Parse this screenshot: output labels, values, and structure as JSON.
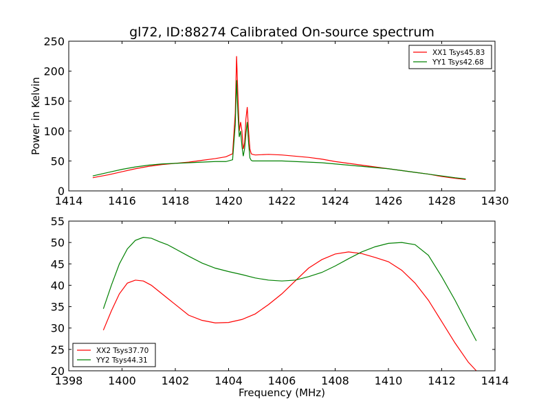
{
  "chart_data": [
    {
      "type": "line",
      "title": "gl72, ID:88274 Calibrated On-source spectrum",
      "xlabel": "",
      "ylabel": "Power in Kelvin",
      "xlim": [
        1414,
        1430
      ],
      "ylim": [
        0,
        250
      ],
      "xticks": [
        "1414",
        "1416",
        "1418",
        "1420",
        "1422",
        "1424",
        "1426",
        "1428",
        "1430"
      ],
      "yticks": [
        "0",
        "50",
        "100",
        "150",
        "200",
        "250"
      ],
      "grid": false,
      "legend_placement": "top-right",
      "series": [
        {
          "name": "XX1 Tsys45.83",
          "color": "#ff0000",
          "x": [
            1414.9,
            1415.5,
            1416.0,
            1416.5,
            1417.0,
            1417.5,
            1418.0,
            1418.5,
            1419.0,
            1419.5,
            1419.9,
            1420.15,
            1420.25,
            1420.3,
            1420.35,
            1420.4,
            1420.45,
            1420.5,
            1420.55,
            1420.6,
            1420.65,
            1420.7,
            1420.75,
            1420.8,
            1420.85,
            1420.9,
            1421.0,
            1421.5,
            1422.0,
            1422.5,
            1423.0,
            1423.5,
            1424.0,
            1424.5,
            1425.0,
            1425.5,
            1426.0,
            1426.5,
            1427.0,
            1427.5,
            1428.0,
            1428.5,
            1428.9
          ],
          "y": [
            22,
            27,
            32,
            37,
            41,
            44,
            46,
            48,
            51,
            54,
            57,
            62,
            130,
            225,
            160,
            100,
            115,
            100,
            70,
            80,
            120,
            140,
            100,
            70,
            62,
            61,
            60,
            61,
            60,
            58,
            56,
            53,
            49,
            46,
            43,
            40,
            37,
            34,
            31,
            28,
            24,
            21,
            19
          ]
        },
        {
          "name": "YY1 Tsys42.68",
          "color": "#008000",
          "x": [
            1414.9,
            1415.5,
            1416.0,
            1416.5,
            1417.0,
            1417.5,
            1418.0,
            1418.5,
            1419.0,
            1419.5,
            1419.9,
            1420.15,
            1420.25,
            1420.3,
            1420.35,
            1420.4,
            1420.45,
            1420.5,
            1420.55,
            1420.6,
            1420.65,
            1420.7,
            1420.75,
            1420.8,
            1420.85,
            1420.9,
            1421.0,
            1421.5,
            1422.0,
            1422.5,
            1423.0,
            1423.5,
            1424.0,
            1424.5,
            1425.0,
            1425.5,
            1426.0,
            1426.5,
            1427.0,
            1427.5,
            1428.0,
            1428.5,
            1428.9
          ],
          "y": [
            25,
            31,
            36,
            40,
            43,
            45,
            46,
            47,
            48,
            49,
            49,
            52,
            110,
            185,
            130,
            90,
            100,
            75,
            58,
            70,
            95,
            115,
            80,
            55,
            51,
            50,
            50,
            50,
            50,
            49,
            48,
            47,
            45,
            43,
            41,
            39,
            37,
            34,
            31,
            28,
            25,
            22,
            20
          ]
        }
      ]
    },
    {
      "type": "line",
      "title": "",
      "xlabel": "Frequency (MHz)",
      "ylabel": "",
      "xlim": [
        1398,
        1414
      ],
      "ylim": [
        20,
        55
      ],
      "xticks": [
        "1398",
        "1400",
        "1402",
        "1404",
        "1406",
        "1408",
        "1410",
        "1412",
        "1414"
      ],
      "yticks": [
        "20",
        "25",
        "30",
        "35",
        "40",
        "45",
        "50",
        "55"
      ],
      "grid": false,
      "legend_placement": "bottom-left",
      "series": [
        {
          "name": "XX2 Tsys37.70",
          "color": "#ff0000",
          "x": [
            1399.3,
            1399.6,
            1399.9,
            1400.2,
            1400.5,
            1400.8,
            1401.1,
            1401.4,
            1401.7,
            1402.0,
            1402.5,
            1403.0,
            1403.5,
            1404.0,
            1404.5,
            1405.0,
            1405.5,
            1406.0,
            1406.5,
            1407.0,
            1407.5,
            1408.0,
            1408.5,
            1409.0,
            1409.5,
            1410.0,
            1410.5,
            1411.0,
            1411.5,
            1412.0,
            1412.5,
            1413.0,
            1413.3
          ],
          "y": [
            29.5,
            34,
            38,
            40.5,
            41.2,
            41,
            40,
            38.5,
            37,
            35.5,
            33,
            31.8,
            31.2,
            31.3,
            32,
            33.3,
            35.5,
            38,
            41,
            44,
            46,
            47.3,
            47.8,
            47.4,
            46.5,
            45.5,
            43.5,
            40.5,
            36.5,
            31.5,
            26.5,
            22,
            20
          ]
        },
        {
          "name": "YY2 Tsys44.31",
          "color": "#008000",
          "x": [
            1399.3,
            1399.6,
            1399.9,
            1400.2,
            1400.5,
            1400.8,
            1401.1,
            1401.4,
            1401.7,
            1402.0,
            1402.5,
            1403.0,
            1403.5,
            1404.0,
            1404.5,
            1405.0,
            1405.5,
            1406.0,
            1406.5,
            1407.0,
            1407.5,
            1408.0,
            1408.5,
            1409.0,
            1409.5,
            1410.0,
            1410.5,
            1411.0,
            1411.5,
            1412.0,
            1412.5,
            1413.0,
            1413.3
          ],
          "y": [
            34.5,
            40,
            45,
            48.5,
            50.5,
            51.2,
            51,
            50.2,
            49.5,
            48.5,
            46.8,
            45.2,
            44,
            43.2,
            42.5,
            41.7,
            41.2,
            41,
            41.2,
            42,
            43,
            44.5,
            46.2,
            47.8,
            49,
            49.8,
            50,
            49.5,
            47,
            42,
            36.5,
            30.5,
            27
          ]
        }
      ]
    }
  ]
}
